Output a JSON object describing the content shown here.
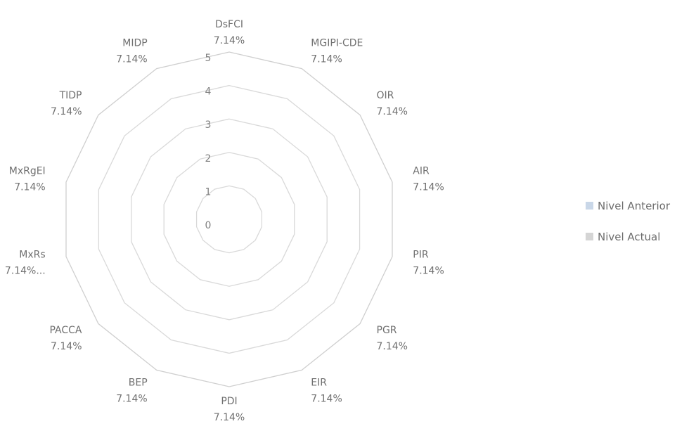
{
  "chart_data": {
    "type": "radar",
    "rmin": 0,
    "rmax": 5,
    "ticks": [
      "0",
      "1",
      "2",
      "3",
      "4",
      "5"
    ],
    "axes": [
      {
        "name": "DsFCI",
        "pct": "7.14%"
      },
      {
        "name": "MGIPI-CDE",
        "pct": "7.14%"
      },
      {
        "name": "OIR",
        "pct": "7.14%"
      },
      {
        "name": "AIR",
        "pct": "7.14%"
      },
      {
        "name": "PIR",
        "pct": "7.14%"
      },
      {
        "name": "PGR",
        "pct": "7.14%"
      },
      {
        "name": "EIR",
        "pct": "7.14%"
      },
      {
        "name": "PDI",
        "pct": "7.14%"
      },
      {
        "name": "BEP",
        "pct": "7.14%"
      },
      {
        "name": "PACCA",
        "pct": "7.14%"
      },
      {
        "name": "MxRs",
        "pct": "7.14%..."
      },
      {
        "name": "MxRgEI",
        "pct": "7.14%"
      },
      {
        "name": "TIDP",
        "pct": "7.14%"
      },
      {
        "name": "MIDP",
        "pct": "7.14%"
      }
    ],
    "series": [
      {
        "name": "Nivel Anterior",
        "color": "#c9d7e8",
        "values": []
      },
      {
        "name": "Nivel Actual",
        "color": "#d5d5d5",
        "values": []
      }
    ],
    "legend_position": "right",
    "grid": true
  }
}
